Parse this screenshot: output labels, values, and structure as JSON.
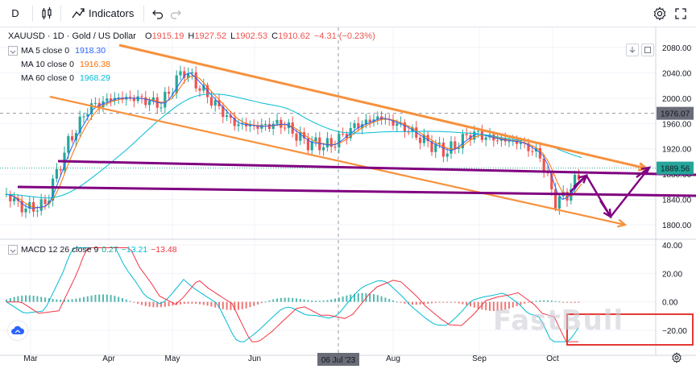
{
  "toolbar": {
    "interval": "D",
    "indicators_label": "Indicators"
  },
  "symbol": {
    "title": "XAUUSD · 1D · Gold / US Dollar",
    "o_label": "O",
    "o": "1915.19",
    "h_label": "H",
    "h": "1927.52",
    "l_label": "L",
    "l": "1902.53",
    "c_label": "C",
    "c": "1910.62",
    "change": "−4.31 (−0.23%)"
  },
  "ma": [
    {
      "label": "MA 5 close 0",
      "value": "1918.30",
      "color": "#2962ff"
    },
    {
      "label": "MA 10 close 0",
      "value": "1916.38",
      "color": "#ff6d00"
    },
    {
      "label": "MA 60 close 0",
      "value": "1968.29",
      "color": "#00bcd4"
    }
  ],
  "price_axis": {
    "ticks": [
      "2080.00",
      "2040.00",
      "2000.00",
      "1960.00",
      "1920.00",
      "1880.00",
      "1840.00",
      "1800.00"
    ],
    "highlight_label": "1976.07",
    "current_label": "1889.56"
  },
  "macd": {
    "label": "MACD 12 26 close 9",
    "v1": "0.27",
    "v1_color": "#26a69a",
    "v2": "−13.21",
    "v2_color": "#00bcd4",
    "v3": "−13.48",
    "v3_color": "#f23645",
    "ticks": [
      "40.00",
      "20.00",
      "0.00",
      "−20.00"
    ]
  },
  "time_axis": {
    "labels": [
      "Mar",
      "Apr",
      "May",
      "Jun",
      "Aug",
      "Sep",
      "Oct"
    ],
    "crosshair_label": "06 Jul '23"
  },
  "watermark": "FastBull",
  "colors": {
    "up": "#26a69a",
    "down": "#ef5350",
    "channel": "#f7913d",
    "annotation": "#800080"
  }
}
